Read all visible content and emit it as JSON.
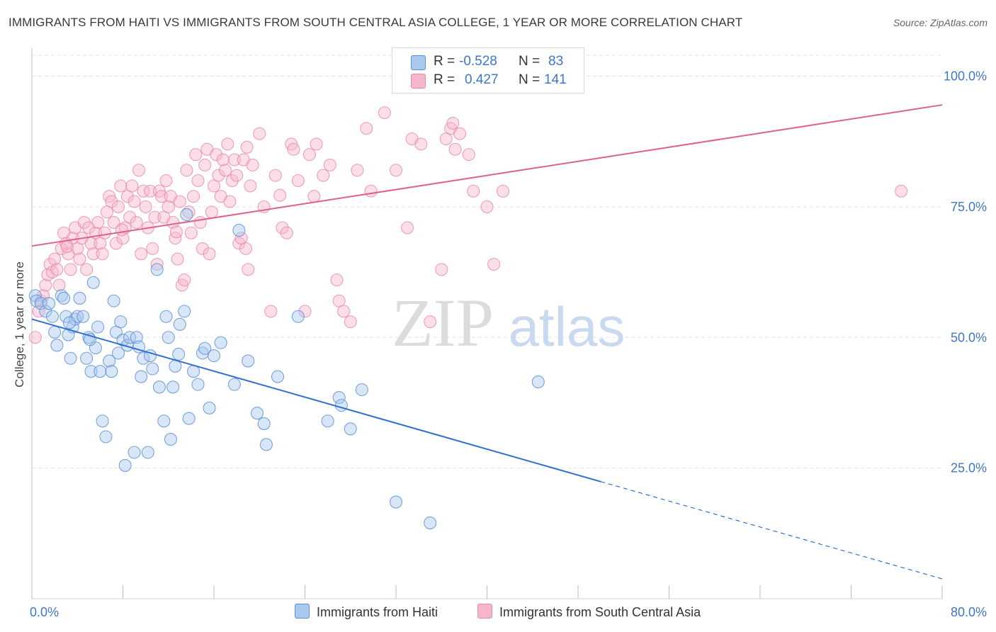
{
  "title": "IMMIGRANTS FROM HAITI VS IMMIGRANTS FROM SOUTH CENTRAL ASIA COLLEGE, 1 YEAR OR MORE CORRELATION CHART",
  "source": "Source: ZipAtlas.com",
  "watermark": {
    "zip": "ZIP",
    "atlas": "atlas"
  },
  "legend": {
    "rows": [
      {
        "r_label": "R =",
        "r_value": "-0.528",
        "n_label": "N =",
        "n_value": "83"
      },
      {
        "r_label": "R =",
        "r_value": "0.427",
        "n_label": "N =",
        "n_value": "141"
      }
    ]
  },
  "colors": {
    "haiti_fill": "#a8c8f0",
    "haiti_stroke": "#5b8fd6",
    "haiti_line": "#2f6fce",
    "sca_fill": "#f6b6c9",
    "sca_stroke": "#e98aa8",
    "sca_line": "#e05f8c",
    "tick_label": "#3f76c8",
    "grid": "#e3e3e3"
  },
  "chart_data": {
    "type": "scatter",
    "xlabel": "",
    "ylabel": "College, 1 year or more",
    "xlim": [
      0,
      80
    ],
    "ylim": [
      0,
      104
    ],
    "x_tick_labels": [
      "0.0%",
      "80.0%"
    ],
    "y_ticks": [
      25,
      50,
      75,
      100
    ],
    "y_tick_labels": [
      "25.0%",
      "50.0%",
      "75.0%",
      "100.0%"
    ],
    "grid": "horizontal dashed",
    "legend_position": "top-center",
    "series": [
      {
        "name": "Immigrants from Haiti",
        "r": -0.528,
        "n": 83,
        "trend": {
          "x0": 0,
          "y0": 53.5,
          "x1": 50,
          "y1": 22.4,
          "dashed_to_x": 80,
          "dashed_to_y": 3.8
        },
        "points": [
          [
            0.3,
            58
          ],
          [
            0.4,
            57
          ],
          [
            0.8,
            56.5
          ],
          [
            1.2,
            55
          ],
          [
            1.5,
            56.5
          ],
          [
            1.8,
            54
          ],
          [
            2.0,
            51
          ],
          [
            2.2,
            48.5
          ],
          [
            2.6,
            58
          ],
          [
            2.8,
            57.5
          ],
          [
            3.0,
            54
          ],
          [
            3.2,
            50.5
          ],
          [
            3.4,
            46
          ],
          [
            3.6,
            52
          ],
          [
            3.8,
            53.5
          ],
          [
            4.0,
            54
          ],
          [
            4.2,
            57.5
          ],
          [
            4.5,
            54
          ],
          [
            4.8,
            46
          ],
          [
            5.0,
            50
          ],
          [
            5.2,
            43.5
          ],
          [
            5.4,
            60.5
          ],
          [
            5.6,
            48
          ],
          [
            5.8,
            52
          ],
          [
            6.0,
            43.5
          ],
          [
            6.2,
            34
          ],
          [
            6.5,
            31
          ],
          [
            6.8,
            45.5
          ],
          [
            7.0,
            43.5
          ],
          [
            7.2,
            57
          ],
          [
            7.4,
            51
          ],
          [
            7.6,
            47
          ],
          [
            7.8,
            53
          ],
          [
            8.0,
            49.5
          ],
          [
            8.2,
            25.5
          ],
          [
            8.4,
            48.5
          ],
          [
            8.6,
            50
          ],
          [
            9.0,
            28
          ],
          [
            9.2,
            50
          ],
          [
            9.6,
            42.5
          ],
          [
            9.8,
            46
          ],
          [
            10.2,
            28
          ],
          [
            10.4,
            46.5
          ],
          [
            10.6,
            44
          ],
          [
            11.0,
            63
          ],
          [
            11.2,
            40.5
          ],
          [
            11.6,
            34
          ],
          [
            11.8,
            54
          ],
          [
            12.0,
            50
          ],
          [
            12.2,
            30.5
          ],
          [
            12.4,
            40.5
          ],
          [
            12.6,
            44.5
          ],
          [
            13.0,
            52.5
          ],
          [
            13.4,
            55
          ],
          [
            13.6,
            73.5
          ],
          [
            13.8,
            34.5
          ],
          [
            14.2,
            43.5
          ],
          [
            14.6,
            41
          ],
          [
            15.0,
            47
          ],
          [
            15.6,
            36.5
          ],
          [
            16.0,
            46.5
          ],
          [
            16.6,
            49
          ],
          [
            17.8,
            41
          ],
          [
            18.2,
            70.5
          ],
          [
            19.0,
            45.5
          ],
          [
            19.8,
            35.5
          ],
          [
            20.4,
            33.5
          ],
          [
            20.6,
            29.5
          ],
          [
            21.6,
            42.5
          ],
          [
            23.4,
            54
          ],
          [
            26.0,
            34
          ],
          [
            27.0,
            38.5
          ],
          [
            27.2,
            37
          ],
          [
            28.0,
            32.5
          ],
          [
            29.0,
            40
          ],
          [
            32.0,
            18.5
          ],
          [
            35.0,
            14.5
          ],
          [
            44.5,
            41.5
          ],
          [
            3.3,
            52.8
          ],
          [
            5.1,
            49.6
          ],
          [
            9.4,
            48.2
          ],
          [
            12.9,
            46.8
          ],
          [
            15.2,
            47.9
          ]
        ]
      },
      {
        "name": "Immigrants from South Central Asia",
        "r": 0.427,
        "n": 141,
        "trend": {
          "x0": 0,
          "y0": 67.5,
          "x1": 80,
          "y1": 94.5
        },
        "points": [
          [
            0.3,
            50
          ],
          [
            0.6,
            55
          ],
          [
            0.8,
            57
          ],
          [
            1.0,
            58
          ],
          [
            1.2,
            60
          ],
          [
            1.4,
            62
          ],
          [
            1.6,
            64
          ],
          [
            1.8,
            62.5
          ],
          [
            2.0,
            65
          ],
          [
            2.2,
            63
          ],
          [
            2.4,
            60
          ],
          [
            2.6,
            67
          ],
          [
            2.8,
            70
          ],
          [
            3.0,
            68
          ],
          [
            3.2,
            66
          ],
          [
            3.4,
            63
          ],
          [
            3.6,
            69
          ],
          [
            3.8,
            71
          ],
          [
            4.0,
            67
          ],
          [
            4.2,
            65
          ],
          [
            4.4,
            69
          ],
          [
            4.6,
            72
          ],
          [
            4.8,
            63
          ],
          [
            5.0,
            71
          ],
          [
            5.2,
            68
          ],
          [
            5.4,
            66
          ],
          [
            5.6,
            70
          ],
          [
            5.8,
            72
          ],
          [
            6.0,
            68
          ],
          [
            6.2,
            66
          ],
          [
            6.4,
            70
          ],
          [
            6.6,
            74
          ],
          [
            6.8,
            77
          ],
          [
            7.0,
            76
          ],
          [
            7.2,
            72
          ],
          [
            7.4,
            68
          ],
          [
            7.6,
            75
          ],
          [
            7.8,
            79
          ],
          [
            8.0,
            69
          ],
          [
            8.2,
            71
          ],
          [
            8.4,
            77
          ],
          [
            8.6,
            73
          ],
          [
            8.8,
            79
          ],
          [
            9.0,
            76
          ],
          [
            9.2,
            72
          ],
          [
            9.4,
            82
          ],
          [
            9.6,
            66
          ],
          [
            9.8,
            78
          ],
          [
            10.0,
            75
          ],
          [
            10.2,
            71
          ],
          [
            10.4,
            78
          ],
          [
            10.6,
            67
          ],
          [
            10.8,
            73
          ],
          [
            11.0,
            64
          ],
          [
            11.2,
            78
          ],
          [
            11.4,
            77
          ],
          [
            11.6,
            73
          ],
          [
            11.8,
            80
          ],
          [
            12.0,
            75
          ],
          [
            12.2,
            77
          ],
          [
            12.4,
            72
          ],
          [
            12.6,
            69
          ],
          [
            12.8,
            65
          ],
          [
            13.0,
            76
          ],
          [
            13.2,
            60
          ],
          [
            13.4,
            61
          ],
          [
            13.6,
            82
          ],
          [
            13.8,
            74
          ],
          [
            14.0,
            70
          ],
          [
            14.2,
            77
          ],
          [
            14.4,
            85
          ],
          [
            14.6,
            80
          ],
          [
            14.8,
            72
          ],
          [
            15.0,
            67
          ],
          [
            15.2,
            83
          ],
          [
            15.4,
            86
          ],
          [
            15.6,
            66
          ],
          [
            15.8,
            74
          ],
          [
            16.0,
            79
          ],
          [
            16.2,
            85
          ],
          [
            16.4,
            81
          ],
          [
            16.6,
            77
          ],
          [
            16.8,
            84
          ],
          [
            17.0,
            82
          ],
          [
            17.2,
            87
          ],
          [
            17.4,
            76
          ],
          [
            17.6,
            80
          ],
          [
            17.8,
            84
          ],
          [
            18.0,
            81
          ],
          [
            18.2,
            68
          ],
          [
            18.4,
            69
          ],
          [
            18.6,
            84
          ],
          [
            18.8,
            67
          ],
          [
            19.0,
            63
          ],
          [
            19.2,
            79
          ],
          [
            19.4,
            83
          ],
          [
            20.0,
            89
          ],
          [
            20.4,
            75
          ],
          [
            21.0,
            55
          ],
          [
            21.4,
            81
          ],
          [
            22.0,
            71
          ],
          [
            22.4,
            70
          ],
          [
            22.8,
            87
          ],
          [
            23.0,
            86
          ],
          [
            23.4,
            80
          ],
          [
            24.0,
            55
          ],
          [
            24.4,
            85
          ],
          [
            24.8,
            77
          ],
          [
            25.0,
            87
          ],
          [
            25.6,
            81
          ],
          [
            26.2,
            83
          ],
          [
            26.8,
            61
          ],
          [
            27.0,
            57
          ],
          [
            27.4,
            55
          ],
          [
            28.0,
            53
          ],
          [
            28.6,
            82
          ],
          [
            29.4,
            90
          ],
          [
            29.8,
            78
          ],
          [
            31.0,
            93
          ],
          [
            32.0,
            82
          ],
          [
            33.0,
            71
          ],
          [
            33.4,
            88
          ],
          [
            34.2,
            87
          ],
          [
            35.0,
            53
          ],
          [
            36.0,
            63
          ],
          [
            36.4,
            88
          ],
          [
            36.8,
            90
          ],
          [
            37.0,
            91
          ],
          [
            37.2,
            86
          ],
          [
            37.6,
            89
          ],
          [
            38.4,
            85
          ],
          [
            38.8,
            78
          ],
          [
            40.0,
            75
          ],
          [
            40.6,
            64
          ],
          [
            41.4,
            78
          ],
          [
            76.4,
            78
          ],
          [
            3.1,
            67.4
          ],
          [
            7.9,
            70.6
          ],
          [
            12.7,
            70.2
          ],
          [
            18.9,
            86.4
          ],
          [
            21.8,
            77.2
          ]
        ]
      }
    ]
  }
}
